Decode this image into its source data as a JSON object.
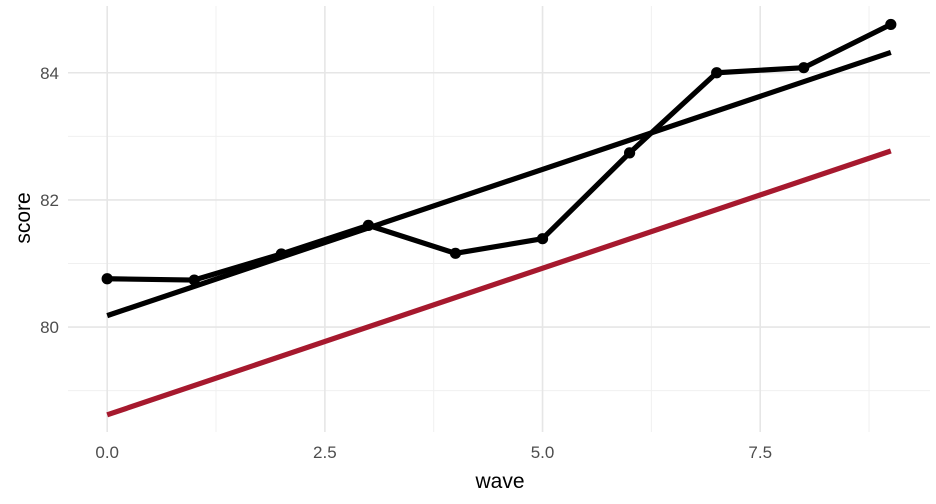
{
  "chart_data": {
    "type": "line",
    "xlabel": "wave",
    "ylabel": "score",
    "xlim": [
      -0.45,
      9.45
    ],
    "ylim": [
      78.35,
      85.05
    ],
    "x_ticks": [
      0.0,
      2.5,
      5.0,
      7.5
    ],
    "x_tick_labels": [
      "0.0",
      "2.5",
      "5.0",
      "7.5"
    ],
    "y_ticks": [
      80,
      82,
      84
    ],
    "y_tick_labels": [
      "80",
      "82",
      "84"
    ],
    "x_minor_ticks": [
      1.25,
      3.75,
      6.25,
      8.75
    ],
    "y_minor_ticks": [
      79,
      81,
      83
    ],
    "grid": true,
    "legend": "none",
    "series": [
      {
        "kind": "observed",
        "color": "#000000",
        "markers": true,
        "x": [
          0,
          1,
          2,
          3,
          4,
          5,
          6,
          7,
          8,
          9
        ],
        "y": [
          80.76,
          80.74,
          81.15,
          81.6,
          81.16,
          81.39,
          82.74,
          84.0,
          84.08,
          84.76
        ]
      },
      {
        "kind": "fitted",
        "color": "#000000",
        "markers": false,
        "x": [
          0,
          9
        ],
        "y": [
          80.18,
          84.32
        ]
      },
      {
        "kind": "fitted",
        "color": "#a6192e",
        "markers": false,
        "x": [
          0,
          9
        ],
        "y": [
          78.62,
          82.77
        ]
      }
    ]
  }
}
